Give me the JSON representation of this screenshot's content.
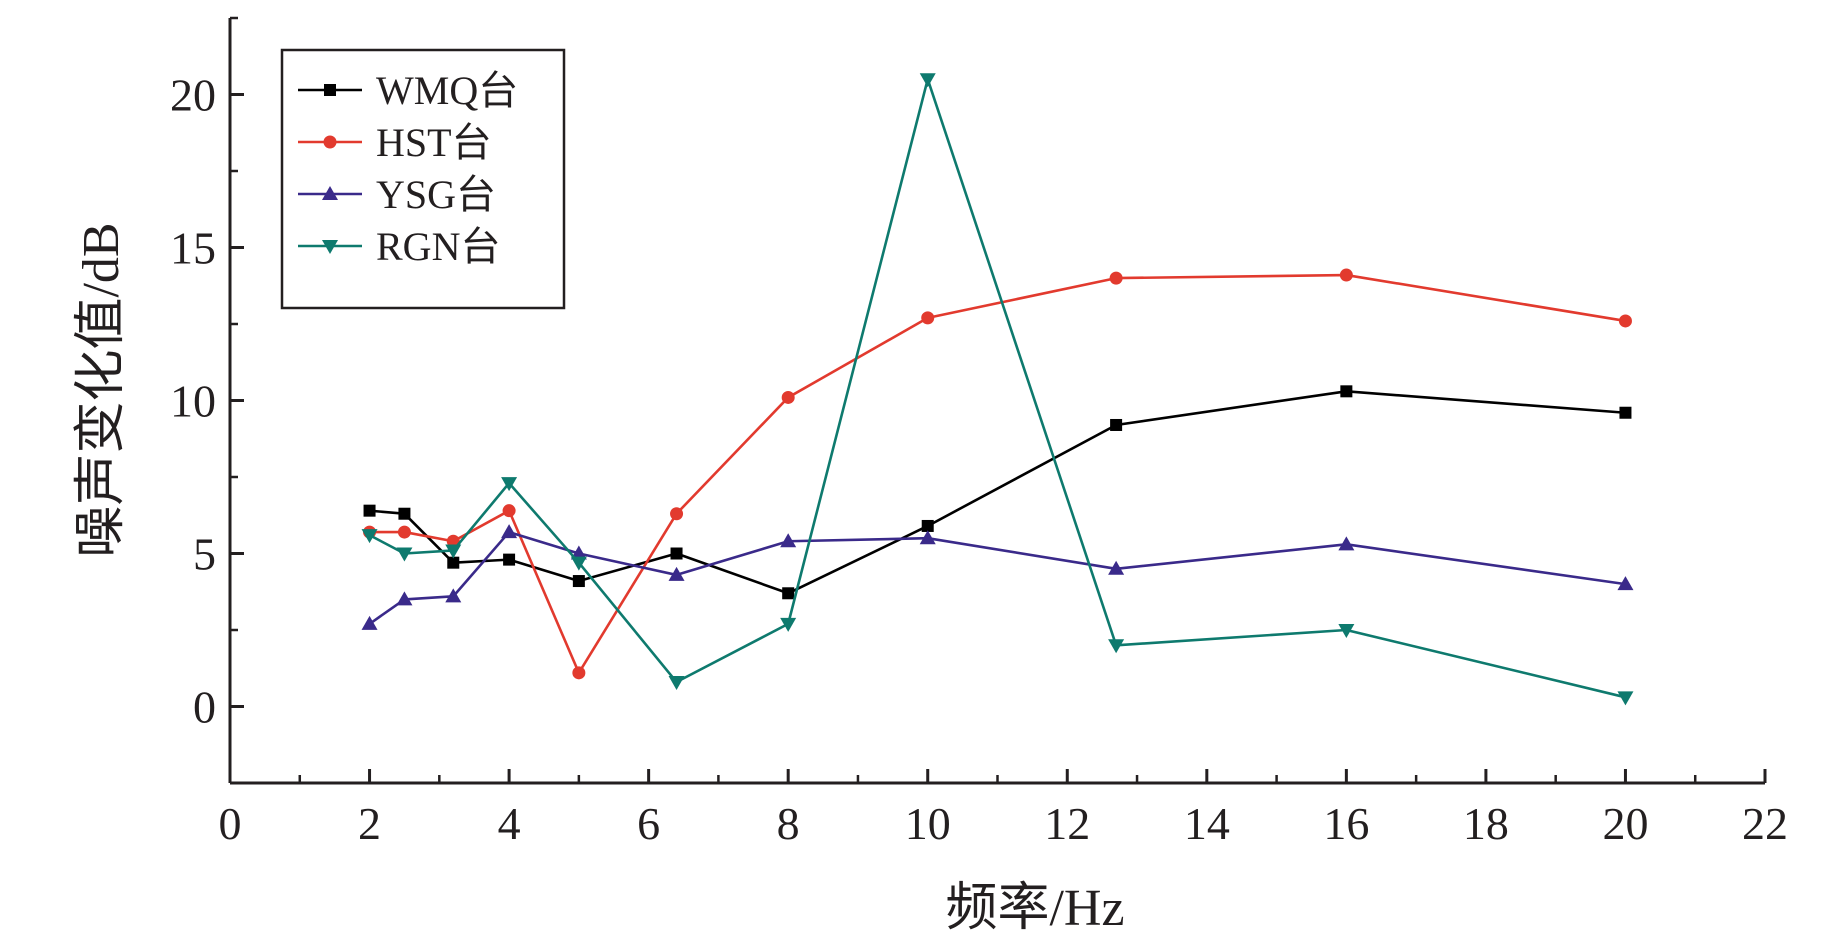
{
  "chart_data": {
    "type": "line",
    "title": "",
    "xlabel": "频率/Hz",
    "ylabel": "噪声变化值/dB",
    "xlim": [
      0,
      22
    ],
    "ylim": [
      -2.5,
      22.5
    ],
    "xticks": [
      "0",
      "2",
      "4",
      "6",
      "8",
      "10",
      "12",
      "14",
      "16",
      "18",
      "20",
      "22"
    ],
    "yticks": [
      "0",
      "5",
      "10",
      "15",
      "20"
    ],
    "x": [
      2,
      2.5,
      3.2,
      4,
      5,
      6.4,
      8,
      10,
      12.7,
      16,
      20
    ],
    "grid": false,
    "legend_position": "top-left",
    "series": [
      {
        "name": "WMQ台",
        "color": "#000000",
        "marker": "square",
        "values": [
          6.4,
          6.3,
          4.7,
          4.8,
          4.1,
          5.0,
          3.7,
          5.9,
          9.2,
          10.3,
          9.6
        ]
      },
      {
        "name": "HST台",
        "color": "#e23a2e",
        "marker": "circle",
        "values": [
          5.7,
          5.7,
          5.4,
          6.4,
          1.1,
          6.3,
          10.1,
          12.7,
          14.0,
          14.1,
          12.6
        ]
      },
      {
        "name": "YSG台",
        "color": "#3a2a8a",
        "marker": "triangle-up",
        "values": [
          2.7,
          3.5,
          3.6,
          5.7,
          5.0,
          4.3,
          5.4,
          5.5,
          4.5,
          5.3,
          4.0
        ]
      },
      {
        "name": "RGN台",
        "color": "#0e7a6e",
        "marker": "triangle-down",
        "values": [
          5.6,
          5.0,
          5.1,
          7.3,
          4.7,
          0.8,
          2.7,
          20.5,
          2.0,
          2.5,
          0.3
        ]
      }
    ]
  }
}
